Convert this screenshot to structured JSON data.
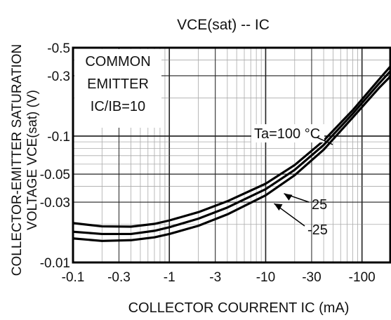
{
  "chart_data": {
    "type": "line",
    "title": "VCE(sat) -- IC",
    "xlabel": "COLLECTOR COURRENT IC (mA)",
    "ylabel_lines": [
      "COLLECTOR-EMITTER SATURATION",
      "VOLTAGE VCE(sat)  (V)"
    ],
    "x_scale": "log",
    "y_scale": "log",
    "xlim": [
      -0.1,
      -200
    ],
    "ylim": [
      -0.01,
      -0.5
    ],
    "x_ticks": [
      {
        "value": -0.1,
        "label": "-0.1"
      },
      {
        "value": -0.3,
        "label": "-0.3"
      },
      {
        "value": -1,
        "label": "-1"
      },
      {
        "value": -3,
        "label": "-3"
      },
      {
        "value": -10,
        "label": "-10"
      },
      {
        "value": -30,
        "label": "-30"
      },
      {
        "value": -100,
        "label": "-100"
      }
    ],
    "y_ticks": [
      {
        "value": -0.5,
        "label": "-0.5"
      },
      {
        "value": -0.3,
        "label": "-0.3"
      },
      {
        "value": -0.1,
        "label": "-0.1"
      },
      {
        "value": -0.05,
        "label": "-0.05"
      },
      {
        "value": -0.03,
        "label": "-0.03"
      },
      {
        "value": -0.01,
        "label": "-0.01"
      }
    ],
    "grid": true,
    "condition_box": [
      "COMMON",
      "EMITTER",
      "IC/IB=10"
    ],
    "series": [
      {
        "name": "Ta=100 °C",
        "x": [
          -0.1,
          -0.2,
          -0.4,
          -0.7,
          -1,
          -2,
          -4,
          -10,
          -20,
          -40,
          -80,
          -150,
          -200
        ],
        "y": [
          -0.0155,
          -0.0148,
          -0.015,
          -0.0158,
          -0.0168,
          -0.0195,
          -0.024,
          -0.034,
          -0.049,
          -0.078,
          -0.14,
          -0.24,
          -0.3
        ]
      },
      {
        "name": "25",
        "x": [
          -0.1,
          -0.2,
          -0.4,
          -0.7,
          -1,
          -2,
          -4,
          -10,
          -20,
          -40,
          -80,
          -150,
          -200
        ],
        "y": [
          -0.0175,
          -0.0168,
          -0.0168,
          -0.0178,
          -0.019,
          -0.0222,
          -0.0272,
          -0.038,
          -0.054,
          -0.085,
          -0.15,
          -0.26,
          -0.33
        ]
      },
      {
        "name": "-25",
        "x": [
          -0.1,
          -0.2,
          -0.4,
          -0.7,
          -1,
          -2,
          -4,
          -10,
          -20,
          -40,
          -80,
          -150,
          -200
        ],
        "y": [
          -0.0205,
          -0.0193,
          -0.0192,
          -0.0202,
          -0.0215,
          -0.025,
          -0.0305,
          -0.042,
          -0.059,
          -0.092,
          -0.16,
          -0.28,
          -0.36
        ]
      }
    ]
  }
}
